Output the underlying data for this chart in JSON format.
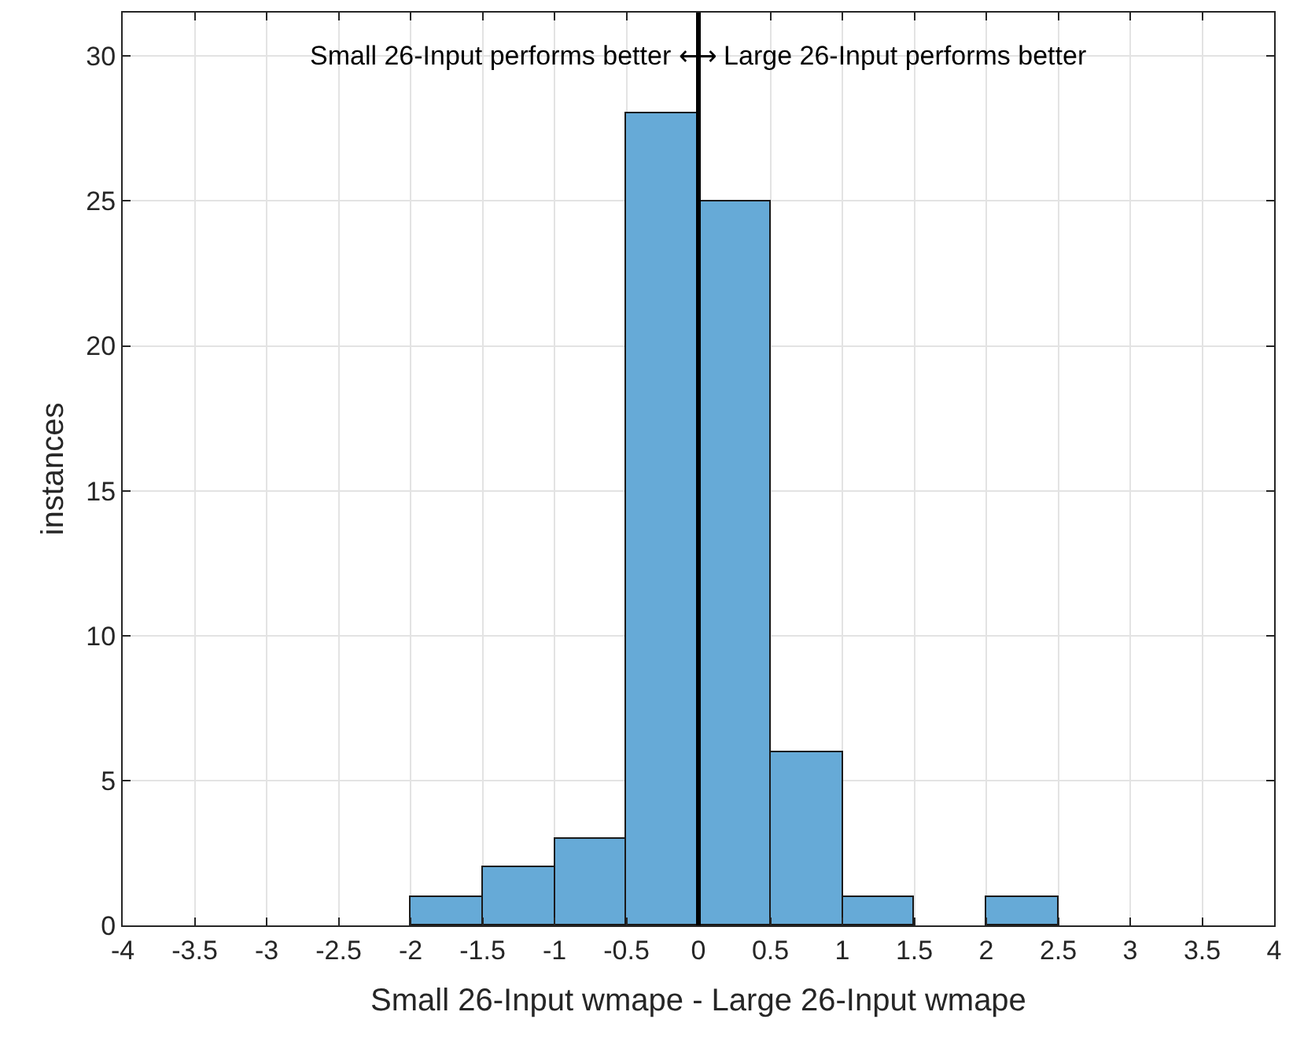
{
  "chart_data": {
    "type": "histogram",
    "xlabel": "Small 26-Input wmape - Large 26-Input wmape",
    "ylabel": "instances",
    "bins": [
      -2,
      -1.5,
      -1,
      -0.5,
      0,
      0.5,
      1,
      1.5,
      2,
      2.5
    ],
    "values": [
      1,
      2,
      3,
      28,
      25,
      6,
      1,
      0,
      1
    ],
    "color": "#66aad7",
    "xlim": [
      -4,
      4
    ],
    "xticks": [
      -4,
      -3.5,
      -3,
      -2.5,
      -2,
      -1.5,
      -1,
      -0.5,
      0,
      0.5,
      1,
      1.5,
      2,
      2.5,
      3,
      3.5,
      4
    ],
    "ylim": [
      0,
      31.5
    ],
    "yticks": [
      0,
      5,
      10,
      15,
      20,
      25,
      30
    ],
    "grid": true,
    "ref_lines": [
      {
        "axis": "x",
        "value": 0,
        "color": "#000000"
      }
    ],
    "annotations": [
      {
        "text": "Small 26-Input performs better ⟷ Large 26-Input performs better",
        "x": 0,
        "y": 30
      }
    ]
  }
}
